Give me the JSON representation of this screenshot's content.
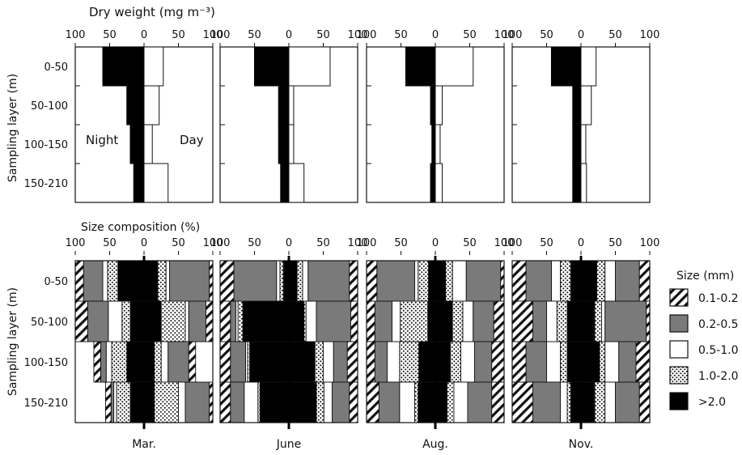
{
  "top_title": "Dry weight (mg m⁻³)",
  "bottom_title": "Size composition (%)",
  "y_axis_label": "Sampling layer (m)",
  "night_label": "Night",
  "day_label": "Day",
  "layers": [
    "0-50",
    "50-100",
    "100-150",
    "150-210"
  ],
  "months": [
    "Mar.",
    "June",
    "Aug.",
    "Nov."
  ],
  "axis_ticks": [
    "100",
    "50",
    "0",
    "50",
    "100"
  ],
  "size_legend": {
    "title": "Size (mm)",
    "items": [
      {
        "label": "0.1-0.2",
        "pattern": "hatch"
      },
      {
        "label": "0.2-0.5",
        "pattern": "gray",
        "color": "#7a7a7a"
      },
      {
        "label": "0.5-1.0",
        "pattern": "white",
        "color": "#ffffff"
      },
      {
        "label": "1.0-2.0",
        "pattern": "dots"
      },
      {
        "label": ">2.0",
        "pattern": "black",
        "color": "#000000"
      }
    ]
  },
  "chart_data": [
    {
      "type": "bar",
      "panel": "dry-weight",
      "title": "Dry weight (mg m⁻³)",
      "ylabel": "Sampling layer (m)",
      "categories": [
        "0-50",
        "50-100",
        "100-150",
        "150-210"
      ],
      "xlim": [
        -100,
        100
      ],
      "months": [
        {
          "month": "Mar.",
          "night": [
            60,
            25,
            20,
            15
          ],
          "day": [
            28,
            22,
            12,
            35
          ]
        },
        {
          "month": "June",
          "night": [
            50,
            15,
            15,
            12
          ],
          "day": [
            60,
            7,
            7,
            22
          ]
        },
        {
          "month": "Aug.",
          "night": [
            43,
            7,
            5,
            7
          ],
          "day": [
            55,
            10,
            7,
            10
          ]
        },
        {
          "month": "Nov.",
          "night": [
            43,
            12,
            12,
            12
          ],
          "day": [
            22,
            15,
            7,
            8
          ]
        }
      ]
    },
    {
      "type": "bar",
      "panel": "size-composition",
      "title": "Size composition (%)",
      "ylabel": "Sampling layer (m)",
      "categories": [
        "0-50",
        "50-100",
        "100-150",
        "150-210"
      ],
      "size_classes": [
        "0.1-0.2",
        "0.2-0.5",
        "0.5-1.0",
        "1.0-2.0",
        ">2.0"
      ],
      "xlim": [
        -100,
        100
      ],
      "note": "Per layer: night composition left of 0, day composition right of 0; values in % by size class",
      "months": [
        {
          "month": "Mar.",
          "night": [
            [
              12,
              28,
              7,
              15,
              38
            ],
            [
              18,
              30,
              20,
              12,
              20
            ],
            [
              10,
              8,
              8,
              22,
              25
            ],
            [
              8,
              4,
              4,
              20,
              20
            ]
          ],
          "day": [
            [
              5,
              58,
              5,
              12,
              20
            ],
            [
              10,
              25,
              5,
              35,
              25
            ],
            [
              10,
              30,
              10,
              10,
              15
            ],
            [
              5,
              35,
              10,
              35,
              15
            ]
          ]
        },
        {
          "month": "June",
          "night": [
            [
              20,
              62,
              5,
              5,
              8
            ],
            [
              15,
              8,
              3,
              7,
              67
            ],
            [
              15,
              22,
              3,
              3,
              57
            ],
            [
              15,
              20,
              20,
              3,
              42
            ]
          ],
          "day": [
            [
              12,
              60,
              8,
              8,
              12
            ],
            [
              10,
              50,
              15,
              3,
              22
            ],
            [
              15,
              20,
              15,
              12,
              38
            ],
            [
              12,
              25,
              12,
              11,
              40
            ]
          ]
        },
        {
          "month": "Aug.",
          "night": [
            [
              15,
              55,
              5,
              15,
              10
            ],
            [
              12,
              25,
              12,
              40,
              11
            ],
            [
              12,
              18,
              18,
              28,
              24
            ],
            [
              18,
              30,
              22,
              5,
              25
            ]
          ],
          "day": [
            [
              5,
              50,
              20,
              10,
              15
            ],
            [
              15,
              30,
              15,
              15,
              25
            ],
            [
              18,
              25,
              20,
              15,
              22
            ],
            [
              18,
              35,
              20,
              10,
              17
            ]
          ]
        },
        {
          "month": "Nov.",
          "night": [
            [
              20,
              37,
              13,
              15,
              15
            ],
            [
              30,
              20,
              15,
              15,
              20
            ],
            [
              20,
              30,
              20,
              10,
              20
            ],
            [
              30,
              40,
              10,
              5,
              15
            ]
          ],
          "day": [
            [
              15,
              35,
              15,
              12,
              23
            ],
            [
              5,
              60,
              5,
              10,
              20
            ],
            [
              20,
              25,
              20,
              8,
              27
            ],
            [
              15,
              35,
              15,
              15,
              20
            ]
          ]
        }
      ]
    }
  ]
}
